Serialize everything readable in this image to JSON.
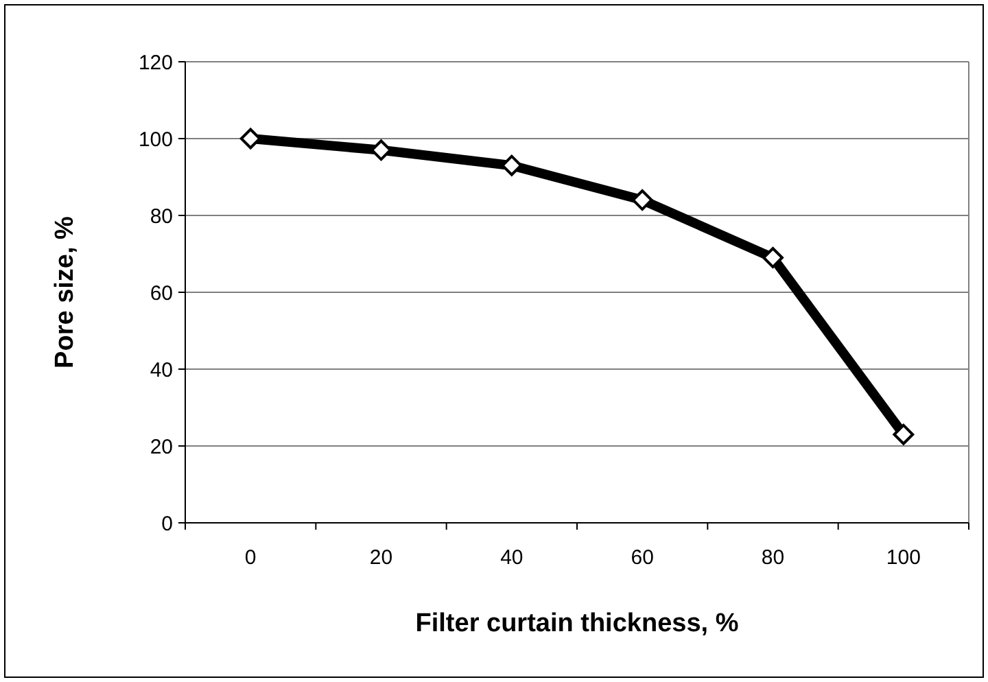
{
  "chart_data": {
    "type": "line",
    "xlabel": "Filter curtain thickness, %",
    "ylabel": "Pore size, %",
    "categories": [
      "0",
      "20",
      "40",
      "60",
      "80",
      "100"
    ],
    "series": [
      {
        "color": "#000000",
        "values": [
          100,
          97,
          93,
          84,
          69,
          23
        ]
      }
    ],
    "ylim": [
      0,
      120
    ],
    "yticks": [
      0,
      20,
      40,
      60,
      80,
      100,
      120
    ],
    "grid": "y",
    "marker": "diamond",
    "line_style": "solid"
  }
}
